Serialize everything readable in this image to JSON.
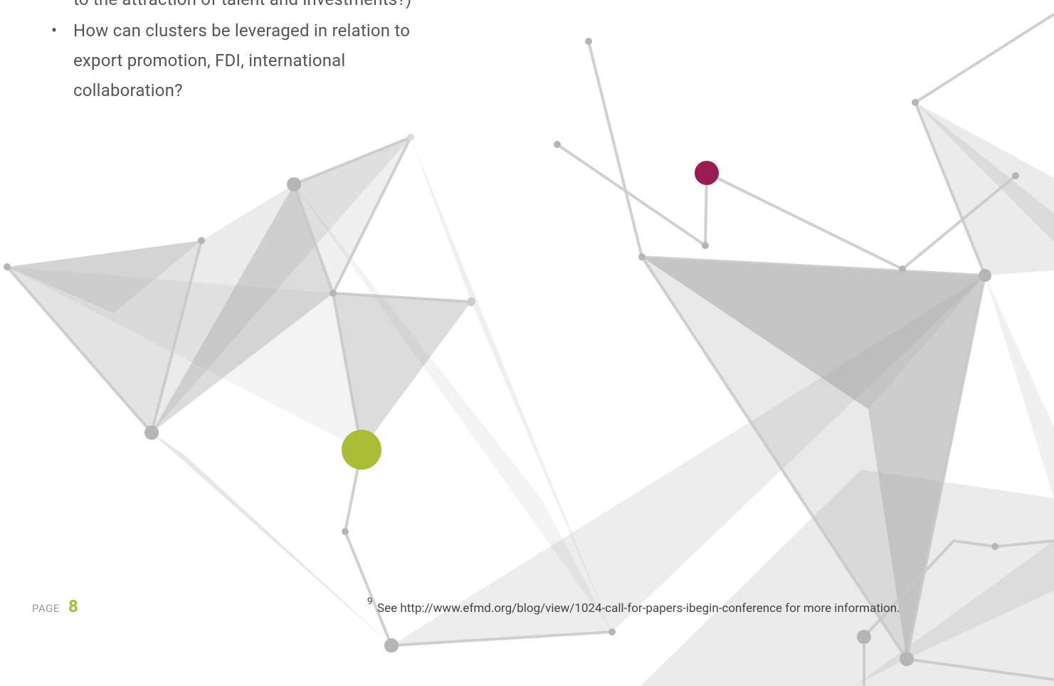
{
  "body": {
    "continued_line": "to the attraction of talent and investments?)",
    "bullets": [
      "How can clusters be leveraged in relation to export promotion, FDI, international collaboration?"
    ]
  },
  "footer": {
    "page_label": "PAGE",
    "page_number": "8"
  },
  "footnote": {
    "marker": "9",
    "text": "See http://www.efmd.org/blog/view/1024-call-for-papers-ibegin-conference for more information."
  }
}
